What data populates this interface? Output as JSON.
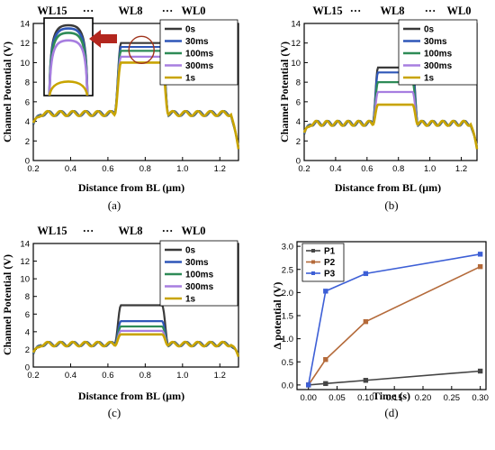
{
  "chart_data": [
    {
      "id": "a",
      "type": "line",
      "caption": "(a)",
      "xlabel": "Distance from BL (μm)",
      "ylabel": "Channel Potential (V)",
      "xlim": [
        0.2,
        1.3
      ],
      "ylim": [
        0,
        14
      ],
      "xticks": [
        "0.2",
        "0.4",
        "0.6",
        "0.8",
        "1.0",
        "1.2"
      ],
      "yticks": [
        "0",
        "2",
        "4",
        "6",
        "8",
        "10",
        "12",
        "14"
      ],
      "top_labels": [
        "WL15",
        "···",
        "WL8",
        "···",
        "WL0"
      ],
      "legend": [
        "0s",
        "30ms",
        "100ms",
        "300ms",
        "1s"
      ],
      "colors": [
        "#3a3a3a",
        "#2f57b8",
        "#2e8b57",
        "#a77ee0",
        "#c8a400"
      ],
      "peaks": [
        12.0,
        11.6,
        11.2,
        10.6,
        10.0
      ],
      "base": [
        4.8,
        4.8,
        4.8,
        4.8,
        4.8
      ],
      "inset": {
        "peaks_top": [
          13.0,
          12.7,
          12.3,
          11.6,
          7.8
        ]
      },
      "grid": false,
      "legend_position": "top-right"
    },
    {
      "id": "b",
      "type": "line",
      "caption": "(b)",
      "xlabel": "Distance from BL (μm)",
      "ylabel": "Channel Potential (V)",
      "xlim": [
        0.2,
        1.3
      ],
      "ylim": [
        0,
        14
      ],
      "xticks": [
        "0.2",
        "0.4",
        "0.6",
        "0.8",
        "1.0",
        "1.2"
      ],
      "yticks": [
        "0",
        "2",
        "4",
        "6",
        "8",
        "10",
        "12",
        "14"
      ],
      "top_labels": [
        "WL15",
        "···",
        "WL8",
        "···",
        "WL0"
      ],
      "legend": [
        "0s",
        "30ms",
        "100ms",
        "300ms",
        "1s"
      ],
      "colors": [
        "#3a3a3a",
        "#2f57b8",
        "#2e8b57",
        "#a77ee0",
        "#c8a400"
      ],
      "peaks": [
        9.5,
        9.0,
        8.0,
        7.0,
        5.7
      ],
      "base": [
        3.8,
        3.8,
        3.8,
        3.8,
        3.8
      ],
      "grid": false,
      "legend_position": "top-right"
    },
    {
      "id": "c",
      "type": "line",
      "caption": "(c)",
      "xlabel": "Distance from BL (μm)",
      "ylabel": "Channel Potential (V)",
      "xlim": [
        0.2,
        1.3
      ],
      "ylim": [
        0,
        14
      ],
      "xticks": [
        "0.2",
        "0.4",
        "0.6",
        "0.8",
        "1.0",
        "1.2"
      ],
      "yticks": [
        "0",
        "2",
        "4",
        "6",
        "8",
        "10",
        "12",
        "14"
      ],
      "top_labels": [
        "WL15",
        "···",
        "WL8",
        "···",
        "WL0"
      ],
      "legend": [
        "0s",
        "30ms",
        "100ms",
        "300ms",
        "1s"
      ],
      "colors": [
        "#3a3a3a",
        "#2f57b8",
        "#2e8b57",
        "#a77ee0",
        "#c8a400"
      ],
      "peaks": [
        7.0,
        5.2,
        4.6,
        4.1,
        3.7
      ],
      "base": [
        2.6,
        2.6,
        2.6,
        2.6,
        2.6
      ],
      "grid": false,
      "legend_position": "top-right"
    },
    {
      "id": "d",
      "type": "line",
      "caption": "(d)",
      "xlabel": "Time (s)",
      "ylabel": "Δ potential (V)",
      "xlim": [
        -0.02,
        0.31
      ],
      "ylim": [
        -0.1,
        3.1
      ],
      "xticks": [
        "0.00",
        "0.05",
        "0.10",
        "0.15",
        "0.20",
        "0.25",
        "0.30"
      ],
      "yticks": [
        "0.0",
        "0.5",
        "1.0",
        "1.5",
        "2.0",
        "2.5",
        "3.0"
      ],
      "x": [
        0,
        0.03,
        0.1,
        0.3
      ],
      "series": [
        {
          "name": "P1",
          "color": "#444444",
          "values": [
            0,
            0.03,
            0.1,
            0.3
          ]
        },
        {
          "name": "P2",
          "color": "#b46a3a",
          "values": [
            0,
            0.55,
            1.37,
            2.56
          ]
        },
        {
          "name": "P3",
          "color": "#3d5fd6",
          "values": [
            0,
            2.03,
            2.41,
            2.83
          ]
        }
      ],
      "grid": false,
      "legend_position": "top-left"
    }
  ]
}
